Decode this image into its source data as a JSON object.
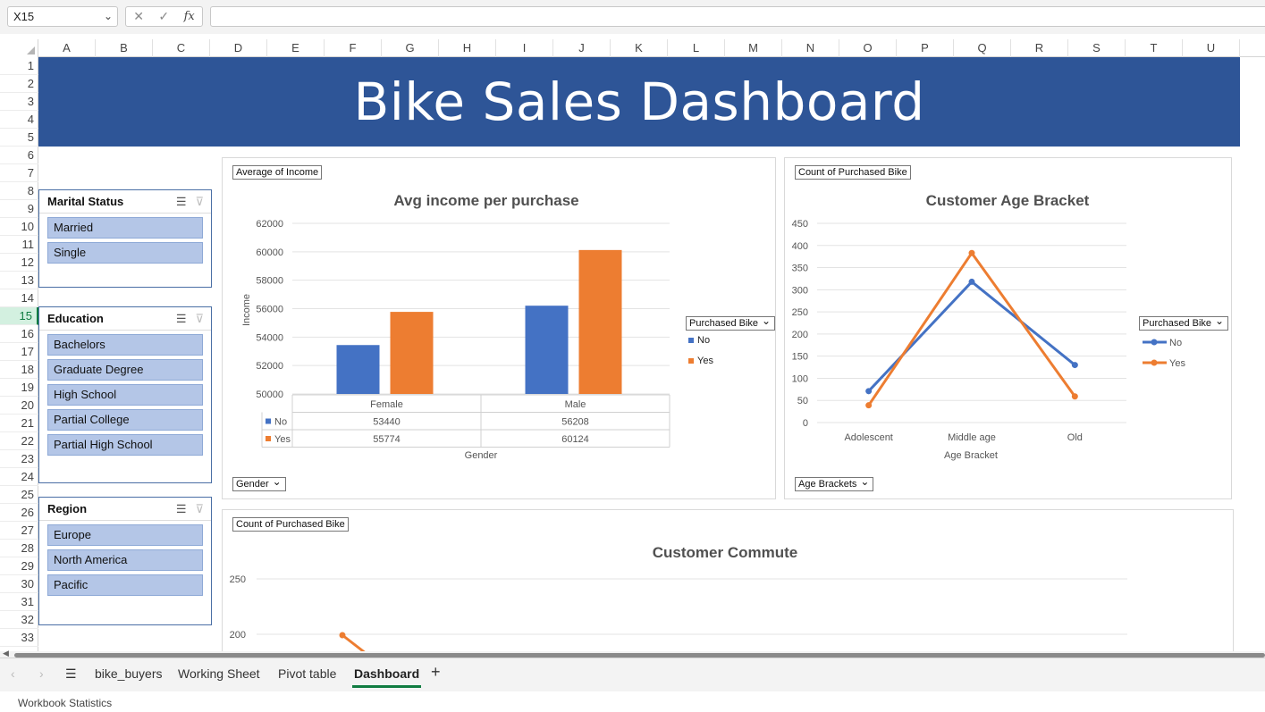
{
  "formula_bar": {
    "name_box": "X15",
    "cancel_icon": "✕",
    "enter_icon": "✓",
    "fx_label": "fx"
  },
  "columns": [
    "A",
    "B",
    "C",
    "D",
    "E",
    "F",
    "G",
    "H",
    "I",
    "J",
    "K",
    "L",
    "M",
    "N",
    "O",
    "P",
    "Q",
    "R",
    "S",
    "T",
    "U"
  ],
  "rows": [
    "1",
    "2",
    "3",
    "4",
    "5",
    "6",
    "7",
    "8",
    "9",
    "10",
    "11",
    "12",
    "13",
    "14",
    "15",
    "16",
    "17",
    "18",
    "19",
    "20",
    "21",
    "22",
    "23",
    "24",
    "25",
    "26",
    "27",
    "28",
    "29",
    "30",
    "31",
    "32",
    "33"
  ],
  "selected_row": "15",
  "banner": {
    "title": "Bike Sales Dashboard"
  },
  "slicers": {
    "marital": {
      "title": "Marital Status",
      "items": [
        "Married",
        "Single"
      ]
    },
    "education": {
      "title": "Education",
      "items": [
        "Bachelors",
        "Graduate Degree",
        "High School",
        "Partial College",
        "Partial High School"
      ]
    },
    "region": {
      "title": "Region",
      "items": [
        "Europe",
        "North America",
        "Pacific"
      ]
    }
  },
  "charts": {
    "income": {
      "value_field": "Average of Income",
      "axis_field": "Gender",
      "legend_field": "Purchased Bike",
      "legend": [
        "No",
        "Yes"
      ],
      "xlabel": "Gender",
      "ylabel": "Income"
    },
    "age": {
      "value_field": "Count of Purchased Bike",
      "axis_field": "Age Brackets",
      "legend_field": "Purchased Bike",
      "legend": [
        "No",
        "Yes"
      ],
      "xlabel": "Age Bracket"
    },
    "commute": {
      "value_field": "Count of Purchased Bike"
    }
  },
  "chart_data": [
    {
      "type": "bar",
      "title": "Avg income per purchase",
      "categories": [
        "Female",
        "Male"
      ],
      "series": [
        {
          "name": "No",
          "values": [
            53440,
            56208
          ],
          "color": "#4472c4"
        },
        {
          "name": "Yes",
          "values": [
            55774,
            60124
          ],
          "color": "#ed7d31"
        }
      ],
      "ylim": [
        50000,
        62000
      ],
      "yticks": [
        "50000",
        "52000",
        "54000",
        "56000",
        "58000",
        "60000",
        "62000"
      ],
      "table_values": [
        [
          "53440",
          "56208"
        ],
        [
          "55774",
          "60124"
        ]
      ]
    },
    {
      "type": "line",
      "title": "Customer Age Bracket",
      "categories": [
        "Adolescent",
        "Middle age",
        "Old"
      ],
      "series": [
        {
          "name": "No",
          "values": [
            71,
            318,
            130
          ],
          "color": "#4472c4"
        },
        {
          "name": "Yes",
          "values": [
            39,
            383,
            59
          ],
          "color": "#ed7d31"
        }
      ],
      "ylim": [
        0,
        450
      ],
      "yticks": [
        "0",
        "50",
        "100",
        "150",
        "200",
        "250",
        "300",
        "350",
        "400",
        "450"
      ]
    },
    {
      "type": "line",
      "title": "Customer Commute",
      "yticks": [
        "200",
        "250"
      ],
      "series": [
        {
          "values": [
            201
          ],
          "color": "#ed7d31"
        }
      ]
    }
  ],
  "sheet_tabs": [
    "bike_buyers",
    "Working Sheet",
    "Pivot table",
    "Dashboard"
  ],
  "active_tab": "Dashboard",
  "status": "Workbook Statistics"
}
